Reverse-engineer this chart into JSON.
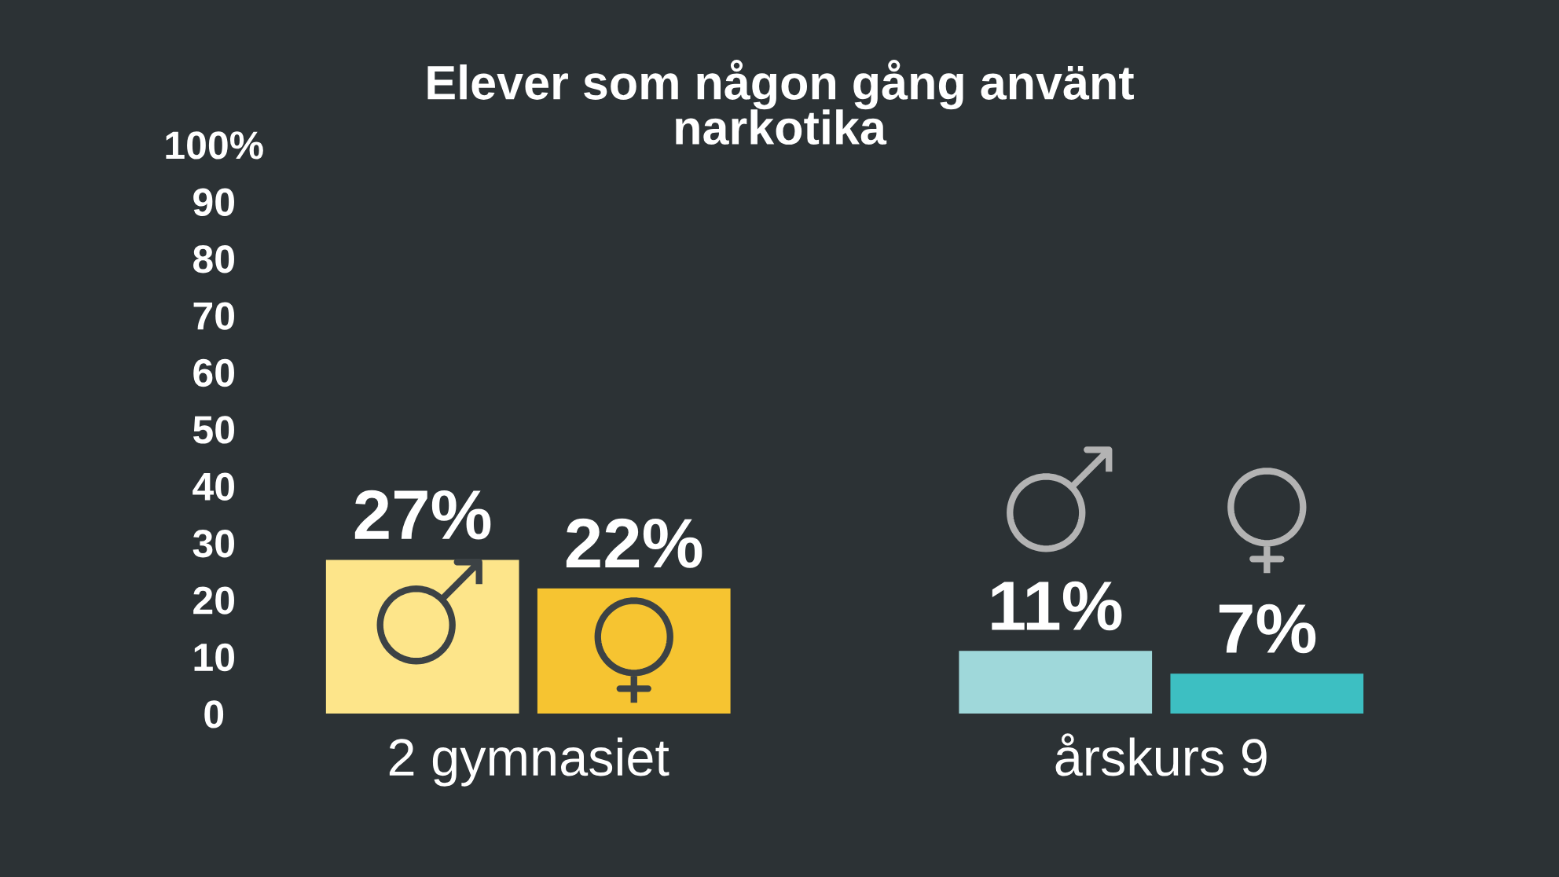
{
  "chart_data": {
    "type": "bar",
    "title": "Elever som någon gång använt\nnarkotika",
    "categories": [
      "2 gymnasiet",
      "årskurs 9"
    ],
    "series": [
      {
        "colors": [
          "#fde58a",
          "#9fd8da"
        ],
        "values": [
          27,
          11
        ],
        "value_labels": [
          "27%",
          "11%"
        ]
      },
      {
        "colors": [
          "#f6c431",
          "#3dbfc2"
        ],
        "values": [
          22,
          7
        ],
        "value_labels": [
          "22%",
          "7%"
        ]
      }
    ],
    "ylim": [
      0,
      100
    ],
    "yticks": [
      0,
      10,
      20,
      30,
      40,
      50,
      60,
      70,
      80,
      90,
      {
        "value": 100,
        "label": "100%"
      }
    ]
  }
}
